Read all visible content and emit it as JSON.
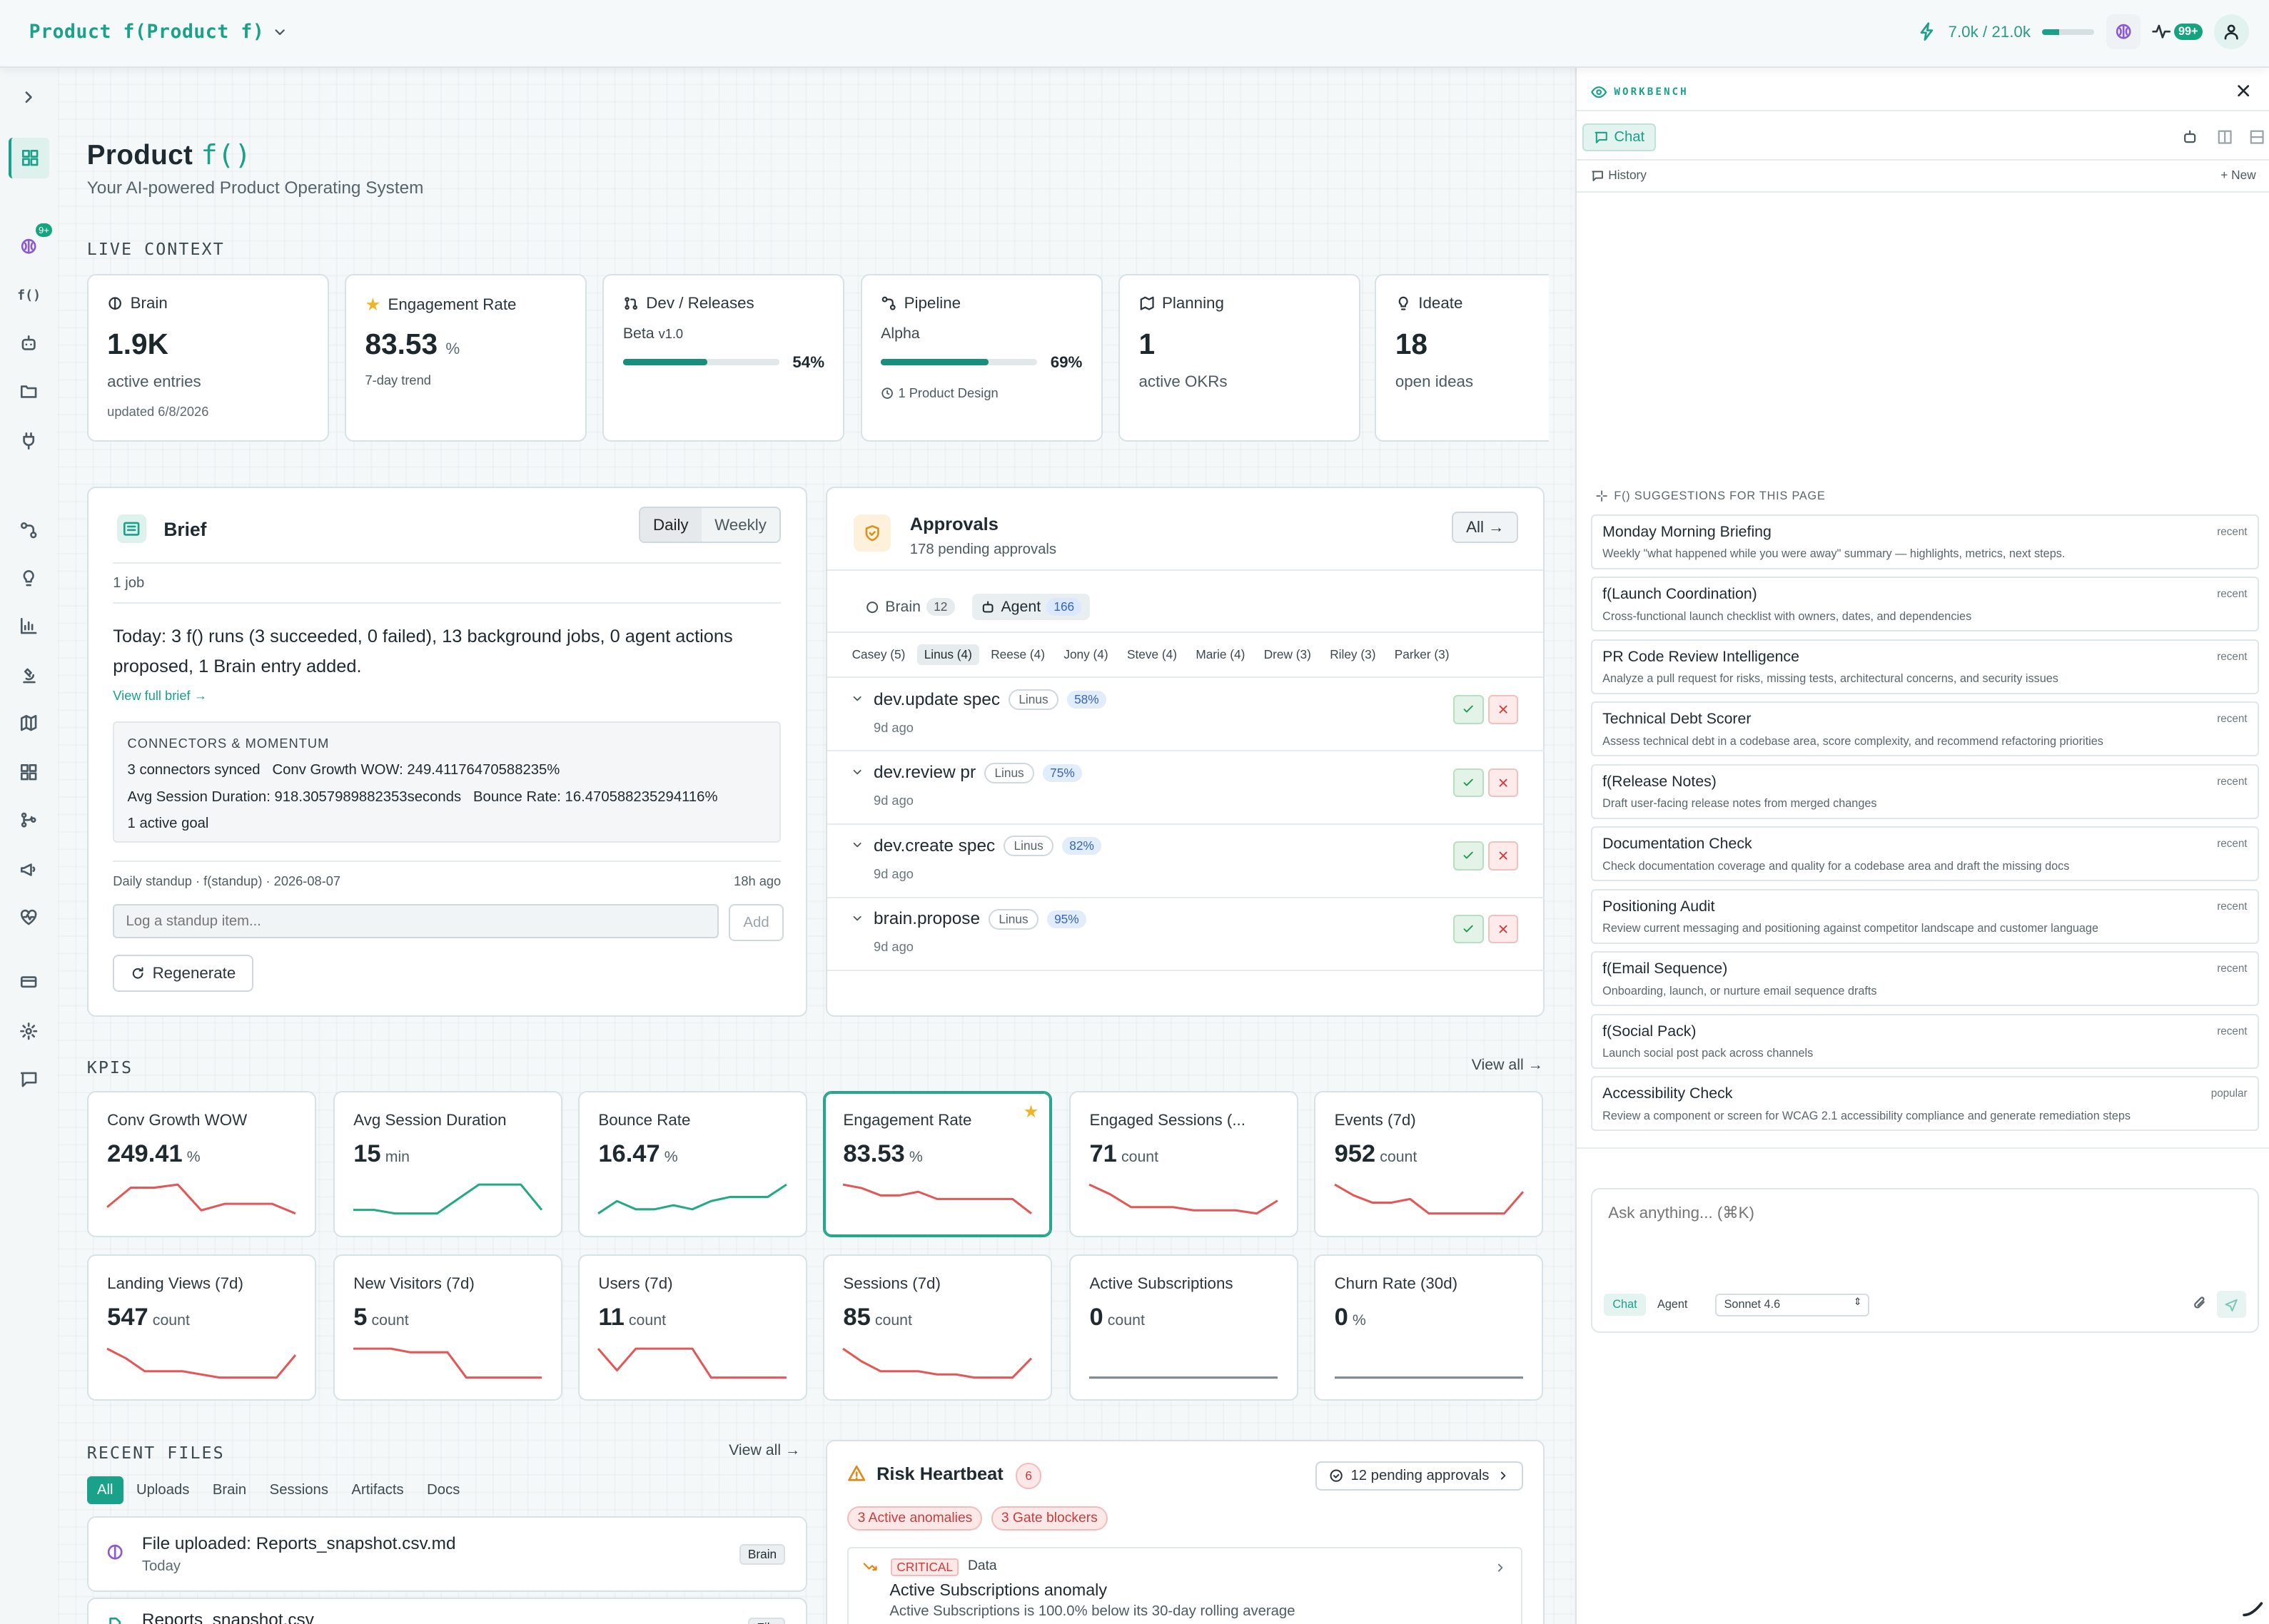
{
  "topbar": {
    "brand": "Product f(Product f)",
    "tokens": "7.0k / 21.0k",
    "token_fraction": 0.33,
    "notif_badge": "99+"
  },
  "page": {
    "title_prefix": "Product",
    "title_fn": "f()",
    "subtitle": "Your AI-powered Product Operating System"
  },
  "live_context": {
    "heading": "LIVE CONTEXT",
    "cards": [
      {
        "label": "Brain",
        "value": "1.9K",
        "sub": "active entries",
        "sub2": "updated 6/8/2026"
      },
      {
        "label": "Engagement Rate",
        "value": "83.53",
        "unit": "%",
        "sub": "7-day trend"
      },
      {
        "label": "Dev / Releases",
        "stage": "Beta",
        "version": "v1.0",
        "progress": "54%",
        "fraction": 0.54
      },
      {
        "label": "Pipeline",
        "stage": "Alpha",
        "progress": "69%",
        "fraction": 0.69,
        "note": "1 Product Design"
      },
      {
        "label": "Planning",
        "value": "1",
        "sub": "active OKRs"
      },
      {
        "label": "Ideate",
        "value": "18",
        "sub": "open ideas"
      }
    ]
  },
  "brief": {
    "title": "Brief",
    "tab_daily": "Daily",
    "tab_weekly": "Weekly",
    "jobs": "1 job",
    "summary": "Today: 3 f() runs (3 succeeded, 0 failed), 13 background jobs, 0 agent actions proposed, 1 Brain entry added.",
    "link": "View full brief →",
    "momentum_title": "CONNECTORS & MOMENTUM",
    "momentum_l1a": "3 connectors synced",
    "momentum_l1b": "Conv Growth WOW: 249.41176470588235%",
    "momentum_l2a": "Avg Session Duration: 918.3057989882353seconds",
    "momentum_l2b": "Bounce Rate: 16.470588235294116%",
    "momentum_l3": "1 active goal",
    "standup_label": "Daily standup · f(standup) · 2026-08-07",
    "standup_time": "18h ago",
    "standup_placeholder": "Log a standup item...",
    "add": "Add",
    "regenerate": "Regenerate"
  },
  "approvals": {
    "title": "Approvals",
    "sub": "178 pending approvals",
    "all": "All →",
    "tab_brain": "Brain",
    "brain_count": "12",
    "tab_agent": "Agent",
    "agent_count": "166",
    "people": [
      "Casey (5)",
      "Linus (4)",
      "Reese (4)",
      "Jony (4)",
      "Steve (4)",
      "Marie (4)",
      "Drew (3)",
      "Riley (3)",
      "Parker (3)"
    ],
    "items": [
      {
        "name": "dev.update spec",
        "who": "Linus",
        "pct": "58%",
        "time": "9d ago"
      },
      {
        "name": "dev.review pr",
        "who": "Linus",
        "pct": "75%",
        "time": "9d ago"
      },
      {
        "name": "dev.create spec",
        "who": "Linus",
        "pct": "82%",
        "time": "9d ago"
      },
      {
        "name": "brain.propose",
        "who": "Linus",
        "pct": "95%",
        "time": "9d ago"
      }
    ]
  },
  "kpis": {
    "heading": "KPIS",
    "view_all": "View all →",
    "items": [
      {
        "name": "Conv Growth WOW",
        "value": "249.41",
        "unit": "%",
        "trend": [
          2,
          8,
          8,
          9,
          1,
          3,
          3,
          3,
          0
        ],
        "color": "#e25757"
      },
      {
        "name": "Avg Session Duration",
        "value": "15",
        "unit": "min",
        "trend": [
          1,
          1,
          0,
          0,
          0,
          4,
          8,
          8,
          8,
          1
        ],
        "color": "#25a985"
      },
      {
        "name": "Bounce Rate",
        "value": "16.47",
        "unit": "%",
        "trend": [
          2,
          5,
          3,
          3,
          4,
          3,
          5,
          6,
          6,
          6,
          9
        ],
        "color": "#25a985"
      },
      {
        "name": "Engagement Rate",
        "value": "83.53",
        "unit": "%",
        "trend": [
          8,
          7,
          5,
          5,
          6,
          4,
          4,
          4,
          4,
          4,
          0
        ],
        "color": "#e25757",
        "starred": true
      },
      {
        "name": "Engaged Sessions (...",
        "value": "71",
        "unit": "count",
        "trend": [
          9,
          6,
          2,
          2,
          2,
          1,
          1,
          1,
          0,
          4
        ],
        "color": "#e25757"
      },
      {
        "name": "Events (7d)",
        "value": "952",
        "unit": "count",
        "trend": [
          9,
          6,
          4,
          4,
          5,
          1,
          1,
          1,
          1,
          1,
          7
        ],
        "color": "#e25757"
      },
      {
        "name": "Landing Views (7d)",
        "value": "547",
        "unit": "count",
        "trend": [
          9,
          6,
          2,
          2,
          2,
          1,
          0,
          0,
          0,
          0,
          7
        ],
        "color": "#e25757"
      },
      {
        "name": "New Visitors (7d)",
        "value": "5",
        "unit": "count",
        "trend": [
          9,
          9,
          9,
          8,
          8,
          8,
          1,
          1,
          1,
          1,
          1
        ],
        "color": "#e25757"
      },
      {
        "name": "Users (7d)",
        "value": "11",
        "unit": "count",
        "trend": [
          9,
          3,
          9,
          9,
          9,
          9,
          1,
          1,
          1,
          1,
          1
        ],
        "color": "#e25757"
      },
      {
        "name": "Sessions (7d)",
        "value": "85",
        "unit": "count",
        "trend": [
          9,
          5,
          2,
          2,
          2,
          1,
          1,
          0,
          0,
          0,
          6
        ],
        "color": "#e25757"
      },
      {
        "name": "Active Subscriptions",
        "value": "0",
        "unit": "count",
        "trend": [
          1,
          1,
          1,
          1,
          1,
          1,
          1,
          1,
          1,
          1
        ],
        "color": "#7e8a90"
      },
      {
        "name": "Churn Rate (30d)",
        "value": "0",
        "unit": "%",
        "trend": [
          1,
          1,
          1,
          1,
          1,
          1,
          1,
          1,
          1,
          1
        ],
        "color": "#7e8a90"
      }
    ]
  },
  "recent_files": {
    "heading": "RECENT FILES",
    "view_all": "View all →",
    "tabs": [
      "All",
      "Uploads",
      "Brain",
      "Sessions",
      "Artifacts",
      "Docs"
    ],
    "items": [
      {
        "name": "File uploaded: Reports_snapshot.csv.md",
        "time": "Today",
        "tag": "Brain"
      },
      {
        "name": "Reports_snapshot.csv",
        "tag": "File"
      }
    ]
  },
  "risk": {
    "title": "Risk Heartbeat",
    "count": "6",
    "pending": "12 pending approvals",
    "tag1": "3 Active anomalies",
    "tag2": "3 Gate blockers",
    "item": {
      "severity": "CRITICAL",
      "kind": "Data",
      "title": "Active Subscriptions anomaly",
      "desc": "Active Subscriptions is 100.0% below its 30-day rolling average"
    }
  },
  "workbench": {
    "title": "WORKBENCH",
    "tab_chat": "Chat",
    "history": "History",
    "new": "New",
    "sugg_heading": "F() SUGGESTIONS FOR THIS PAGE",
    "suggestions": [
      {
        "title": "Monday Morning Briefing",
        "desc": "Weekly \"what happened while you were away\" summary — highlights, metrics, next steps.",
        "badge": "recent"
      },
      {
        "title": "f(Launch Coordination)",
        "desc": "Cross-functional launch checklist with owners, dates, and dependencies",
        "badge": "recent"
      },
      {
        "title": "PR Code Review Intelligence",
        "desc": "Analyze a pull request for risks, missing tests, architectural concerns, and security issues",
        "badge": "recent"
      },
      {
        "title": "Technical Debt Scorer",
        "desc": "Assess technical debt in a codebase area, score complexity, and recommend refactoring priorities",
        "badge": "recent"
      },
      {
        "title": "f(Release Notes)",
        "desc": "Draft user-facing release notes from merged changes",
        "badge": "recent"
      },
      {
        "title": "Documentation Check",
        "desc": "Check documentation coverage and quality for a codebase area and draft the missing docs",
        "badge": "recent"
      },
      {
        "title": "Positioning Audit",
        "desc": "Review current messaging and positioning against competitor landscape and customer language",
        "badge": "recent"
      },
      {
        "title": "f(Email Sequence)",
        "desc": "Onboarding, launch, or nurture email sequence drafts",
        "badge": "recent"
      },
      {
        "title": "f(Social Pack)",
        "desc": "Launch social post pack across channels",
        "badge": "recent"
      },
      {
        "title": "Accessibility Check",
        "desc": "Review a component or screen for WCAG 2.1 accessibility compliance and generate remediation steps",
        "badge": "popular"
      }
    ],
    "input_placeholder": "Ask anything... (⌘K)",
    "mode_chat": "Chat",
    "mode_agent": "Agent",
    "model": "Sonnet 4.6"
  },
  "rail": {
    "badge": "9+",
    "fn_label": "f()"
  }
}
